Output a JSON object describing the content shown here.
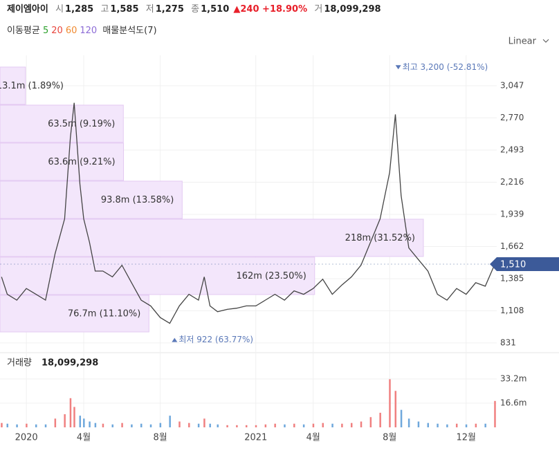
{
  "header": {
    "name": "제이엠아이",
    "open_label": "시",
    "open": "1,285",
    "high_label": "고",
    "high": "1,585",
    "low_label": "저",
    "low": "1,275",
    "close_label": "종",
    "close": "1,510",
    "change": "▲240 +18.90%",
    "volume_label": "거",
    "volume": "18,099,298"
  },
  "indicators": {
    "label": "이동평균",
    "periods": [
      {
        "text": "5",
        "color": "#2ca02c"
      },
      {
        "text": "20",
        "color": "#e8453c"
      },
      {
        "text": "60",
        "color": "#f08a30"
      },
      {
        "text": "120",
        "color": "#8c6bd6"
      }
    ],
    "profile_label": "매물분석도(7)"
  },
  "scale_mode": "Linear",
  "chart_data": {
    "type": "line",
    "x": [
      -1.3,
      -1,
      -0.5,
      0,
      0.5,
      1,
      1.5,
      2,
      2.3,
      2.5,
      2.8,
      3,
      3.3,
      3.6,
      4,
      4.5,
      5,
      5.5,
      6,
      6.5,
      7,
      7.5,
      8,
      8.5,
      9,
      9.3,
      9.6,
      10,
      10.5,
      11,
      11.5,
      12,
      12.5,
      13,
      13.5,
      14,
      14.5,
      15,
      15.5,
      16,
      16.5,
      17,
      17.5,
      18,
      18.5,
      19,
      19.3,
      19.6,
      20,
      20.5,
      21,
      21.5,
      22,
      22.5,
      23,
      23.5,
      24,
      24.5
    ],
    "series": [
      {
        "name": "종가",
        "color": "#444",
        "values": [
          1400,
          1250,
          1200,
          1300,
          1250,
          1200,
          1600,
          1900,
          2600,
          2900,
          2200,
          1900,
          1700,
          1450,
          1450,
          1400,
          1500,
          1350,
          1200,
          1150,
          1050,
          1000,
          1150,
          1250,
          1200,
          1400,
          1150,
          1100,
          1120,
          1130,
          1150,
          1150,
          1200,
          1250,
          1200,
          1280,
          1250,
          1300,
          1380,
          1250,
          1330,
          1400,
          1500,
          1700,
          1900,
          2300,
          2800,
          2100,
          1650,
          1550,
          1450,
          1250,
          1200,
          1300,
          1250,
          1350,
          1320,
          1510
        ]
      }
    ],
    "xlim": [
      -1.38,
      24.6
    ],
    "ylim": [
      777,
      3309
    ],
    "xticks": [
      {
        "value": 0,
        "label": "2020"
      },
      {
        "value": 3,
        "label": "4월"
      },
      {
        "value": 7,
        "label": "8월"
      },
      {
        "value": 12,
        "label": "2021"
      },
      {
        "value": 15,
        "label": "4월"
      },
      {
        "value": 19,
        "label": "8월"
      },
      {
        "value": 23,
        "label": "12월"
      }
    ],
    "yticks": [
      {
        "value": 831,
        "label": "831"
      },
      {
        "value": 1108,
        "label": "1,108"
      },
      {
        "value": 1385,
        "label": "1,385"
      },
      {
        "value": 1662,
        "label": "1,662"
      },
      {
        "value": 1939,
        "label": "1,939"
      },
      {
        "value": 2216,
        "label": "2,216"
      },
      {
        "value": 2493,
        "label": "2,493"
      },
      {
        "value": 2770,
        "label": "2,770"
      },
      {
        "value": 3047,
        "label": "3,047"
      }
    ],
    "grid": true,
    "last_price": {
      "value": 1510,
      "label": "1,510"
    },
    "high_mark": {
      "x": 19.45,
      "value": 3200,
      "label": "최고 3,200 (-52.81%)"
    },
    "low_mark": {
      "x": 7.75,
      "value": 922,
      "label": "최저 922 (63.77%)"
    },
    "volume_profile": {
      "color": "#f3e6fb",
      "bins": [
        920,
        1242,
        1570,
        1897,
        2225,
        2553,
        2880,
        3208
      ],
      "values": [
        76700000,
        162000000,
        218000000,
        93800000,
        63600000,
        63500000,
        13100000
      ],
      "value_labels": [
        "76.7m (11.10%)",
        "162m (23.50%)",
        "218m (31.52%)",
        "93.8m (13.58%)",
        "63.6m (9.21%)",
        "63.5m (9.19%)",
        "13.1m (1.89%)"
      ]
    },
    "volume": {
      "label": "거래량",
      "total": "18,099,298",
      "ylim": [
        0,
        51200000
      ],
      "yticks": [
        {
          "value": 16600000,
          "label": "16.6m"
        },
        {
          "value": 33200000,
          "label": "33.2m"
        }
      ],
      "values": [
        3000000,
        2500000,
        2000000,
        2500000,
        2000000,
        2000000,
        6000000,
        9000000,
        20000000,
        14000000,
        8000000,
        6000000,
        4000000,
        3000000,
        2500000,
        2000000,
        3000000,
        2000000,
        2500000,
        2000000,
        3000000,
        8000000,
        4000000,
        3000000,
        2500000,
        6000000,
        2500000,
        2000000,
        1500000,
        1500000,
        1500000,
        1500000,
        2000000,
        2500000,
        2000000,
        2500000,
        2000000,
        2500000,
        3000000,
        2500000,
        2500000,
        3000000,
        4000000,
        7000000,
        10000000,
        33000000,
        25000000,
        12000000,
        6000000,
        4000000,
        3000000,
        2500000,
        2000000,
        2500000,
        2000000,
        2500000,
        2500000,
        18100000
      ]
    }
  }
}
